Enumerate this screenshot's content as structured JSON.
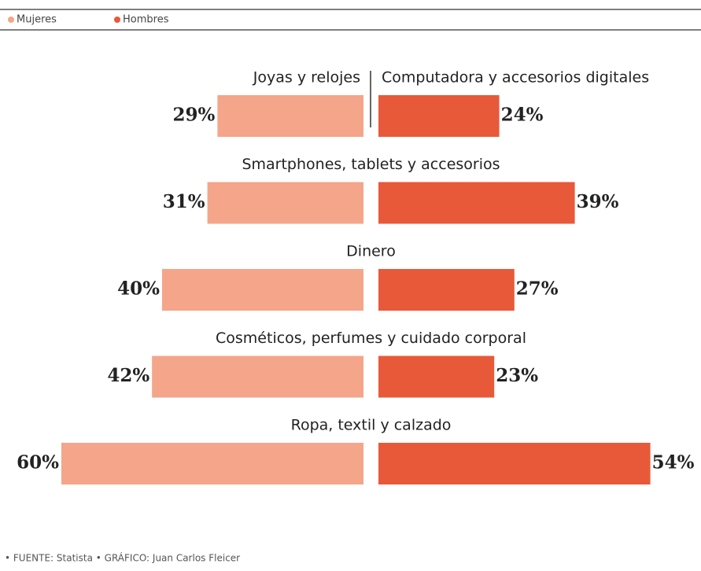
{
  "chart_data": {
    "type": "butterfly",
    "legend": [
      "Mujeres",
      "Hombres"
    ],
    "categories": [
      "Joyas y relojes",
      "Smartphones, tablets y accesorios",
      "Dinero",
      "Cosméticos, perfumes y cuidado corporal",
      "Ropa, textil y calzado"
    ],
    "right_categories": [
      "Computadora y accesorios digitales",
      null,
      null,
      null,
      null
    ],
    "series": [
      {
        "name": "Mujeres",
        "color": "#f4a58a",
        "values": [
          29,
          31,
          40,
          42,
          60
        ],
        "value_labels": [
          "29%",
          "31%",
          "40%",
          "42%",
          "60%"
        ]
      },
      {
        "name": "Hombres",
        "color": "#e8593a",
        "values": [
          24,
          39,
          27,
          23,
          54
        ],
        "value_labels": [
          "24%",
          "39%",
          "27%",
          "23%",
          "54%"
        ]
      }
    ],
    "source": "• FUENTE: Statista • GRÁFICO: Juan Carlos Fleicer"
  }
}
